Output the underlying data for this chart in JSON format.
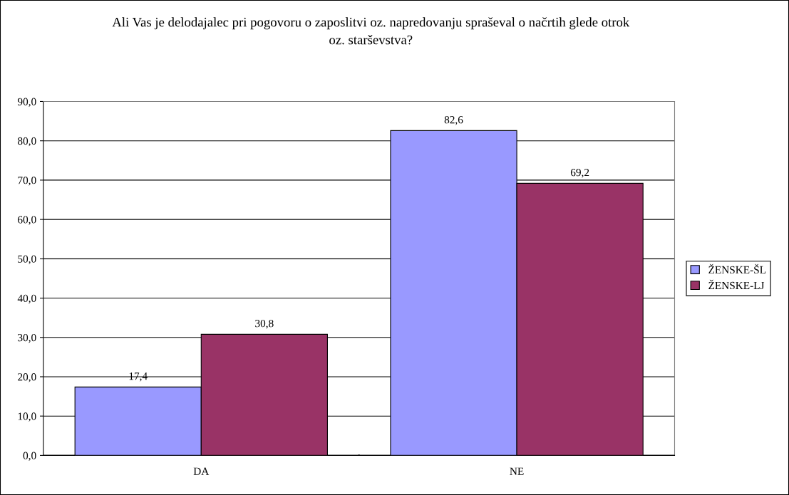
{
  "chart_data": {
    "type": "bar",
    "title": "Ali Vas je delodajalec pri pogovoru o zaposlitvi oz. napredovanju spraševal o načrtih glede otrok\noz. starševstva?",
    "categories": [
      "DA",
      "NE"
    ],
    "series": [
      {
        "name": "ŽENSKE-ŠL",
        "color": "#9999ff",
        "values": [
          17.4,
          82.6
        ],
        "value_labels": [
          "17,4",
          "82,6"
        ]
      },
      {
        "name": "ŽENSKE-LJ",
        "color": "#993366",
        "values": [
          30.8,
          69.2
        ],
        "value_labels": [
          "30,8",
          "69,2"
        ]
      }
    ],
    "ylim": [
      0,
      90
    ],
    "yticks": [
      {
        "value": 0,
        "label": "0,0"
      },
      {
        "value": 10,
        "label": "10,0"
      },
      {
        "value": 20,
        "label": "20,0"
      },
      {
        "value": 30,
        "label": "30,0"
      },
      {
        "value": 40,
        "label": "40,0"
      },
      {
        "value": 50,
        "label": "50,0"
      },
      {
        "value": 60,
        "label": "60,0"
      },
      {
        "value": 70,
        "label": "70,0"
      },
      {
        "value": 80,
        "label": "80,0"
      },
      {
        "value": 90,
        "label": "90,0"
      }
    ],
    "grid": "y",
    "legend": "right"
  }
}
